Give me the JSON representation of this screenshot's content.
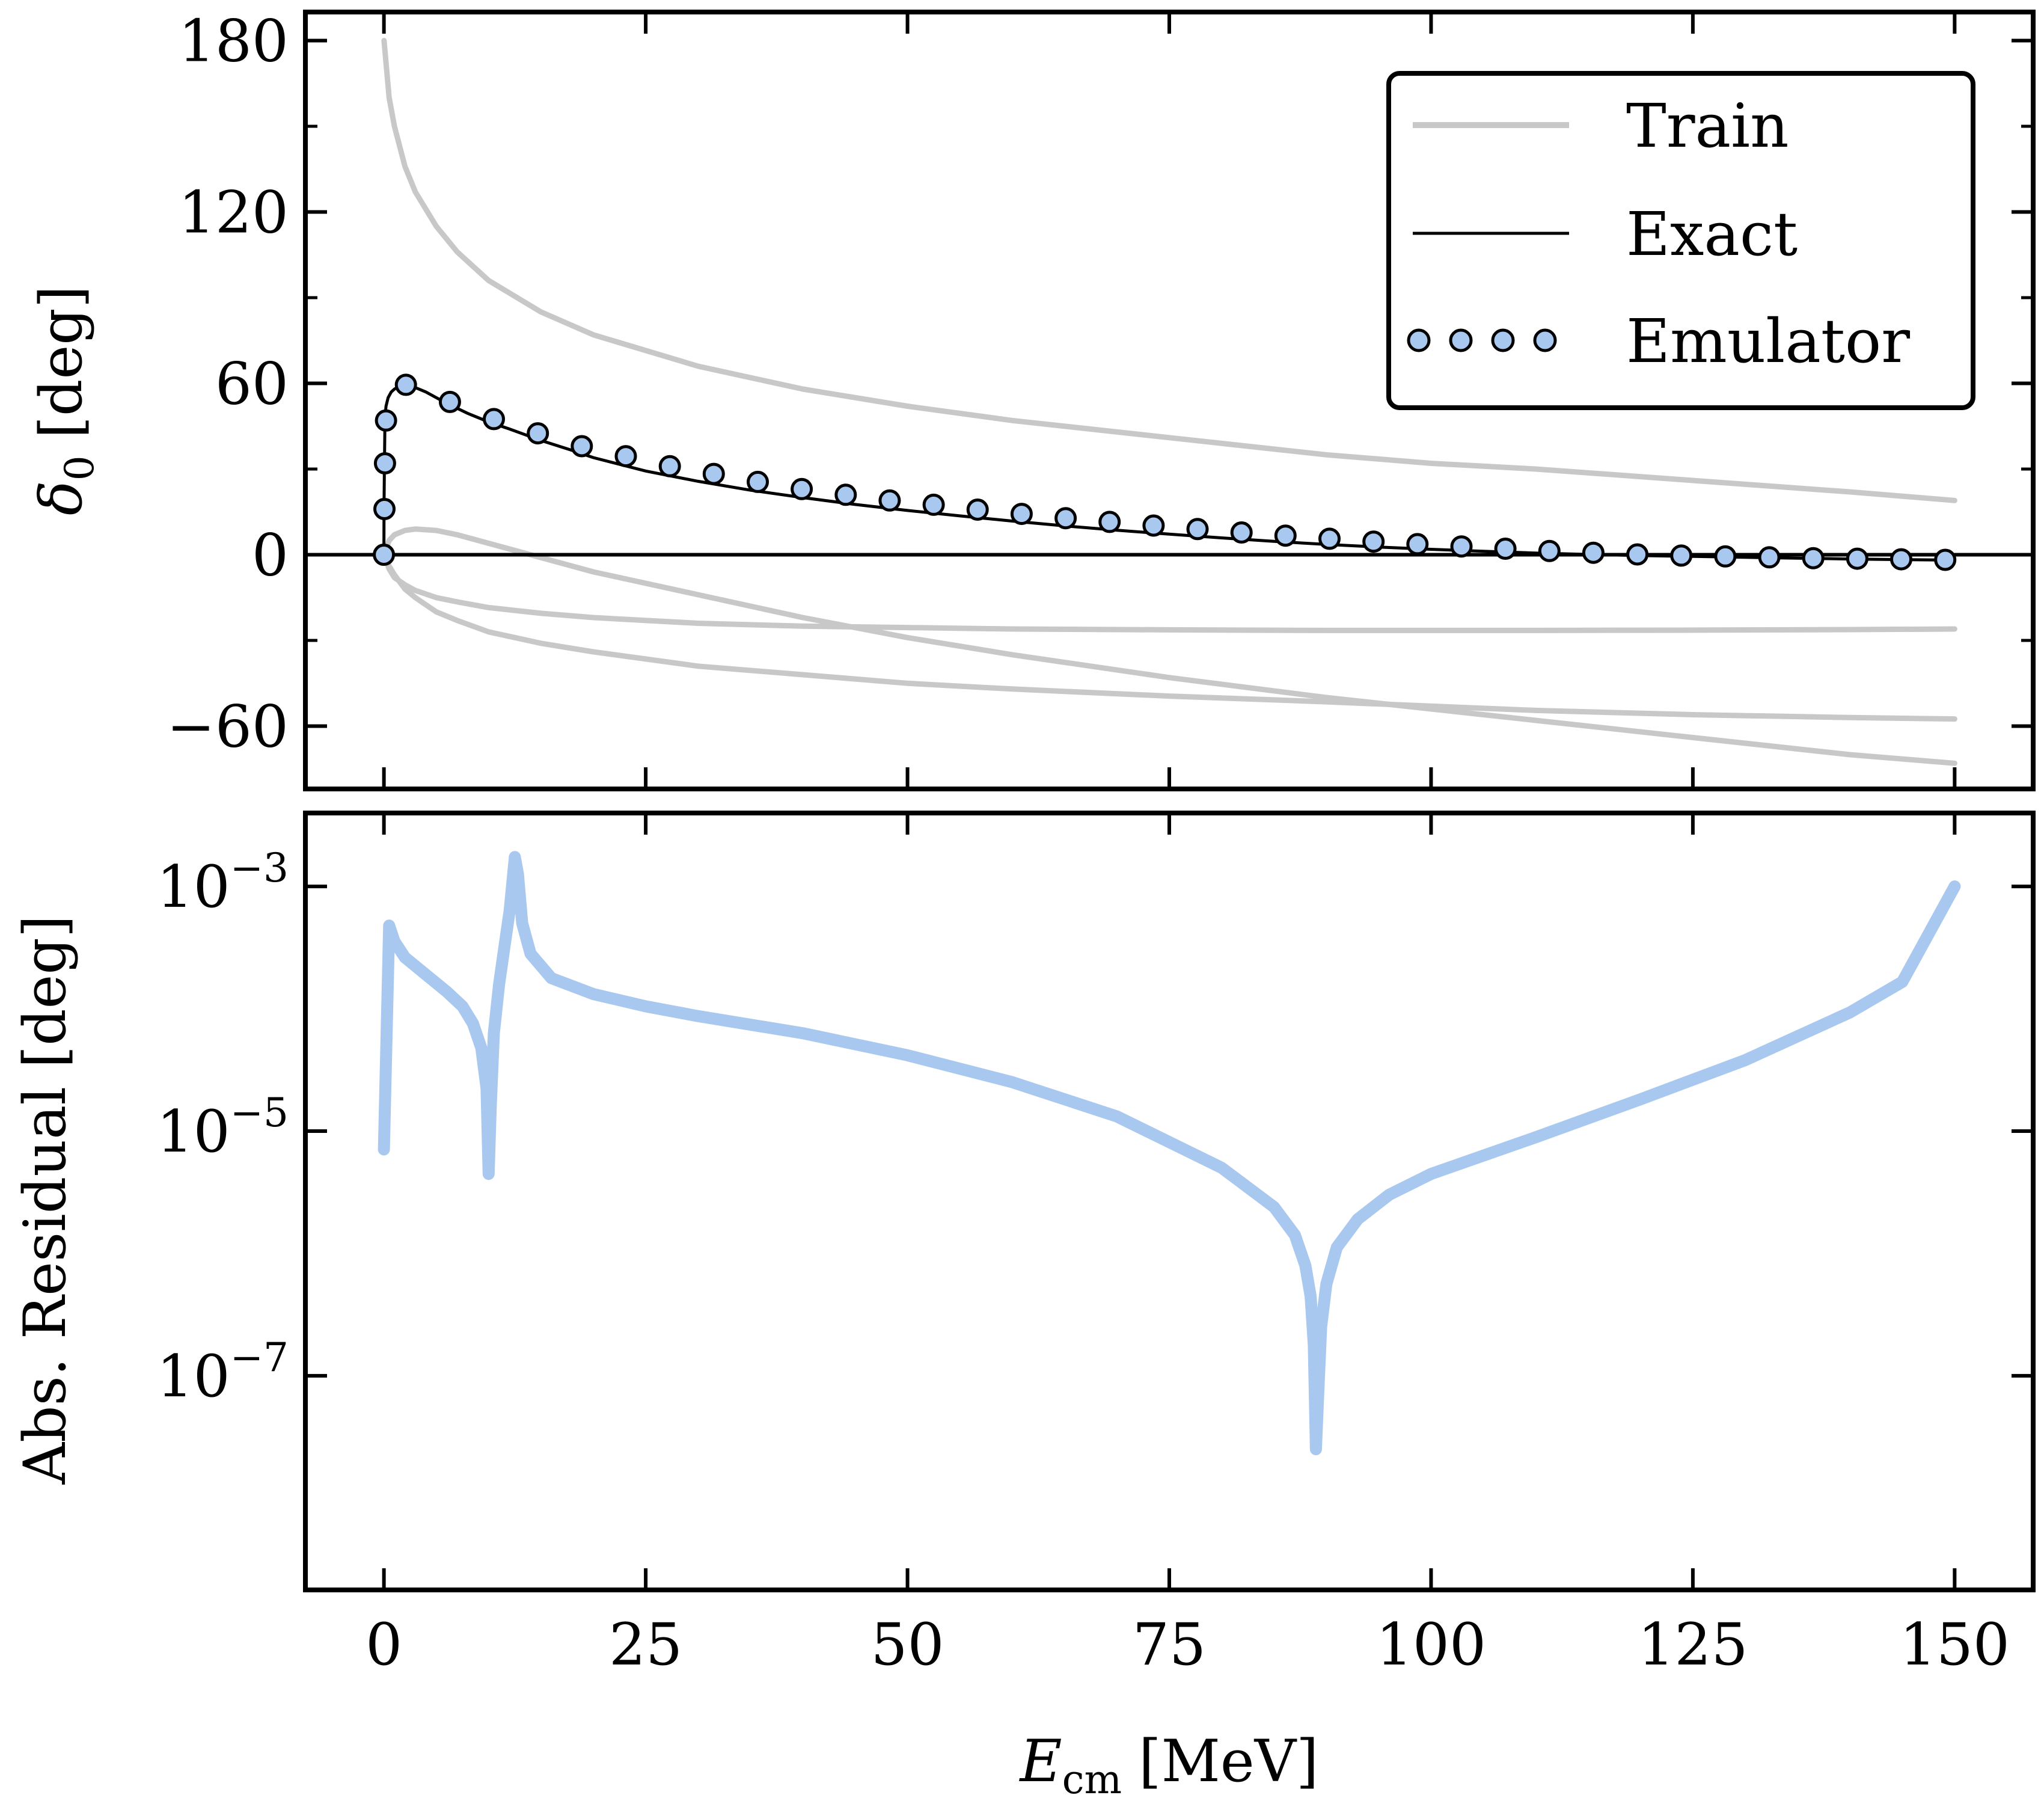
{
  "chart_data": [
    {
      "type": "line",
      "panel": "top",
      "ylabel": "δ0 [deg]",
      "ylabel_main": "δ",
      "ylabel_sub": "0",
      "ylabel_unit": "[deg]",
      "xlim": [
        -7.5,
        157.5
      ],
      "ylim": [
        -82,
        190
      ],
      "xticks": [
        0,
        25,
        50,
        75,
        100,
        125,
        150
      ],
      "yticks": [
        -60,
        0,
        60,
        120,
        180
      ],
      "ytick_labels": [
        "−60",
        "0",
        "60",
        "120",
        "180"
      ],
      "hline": 0,
      "legend": {
        "position": "top-right",
        "train_label": "Train",
        "exact_label": "Exact",
        "emulator_label": "Emulator"
      },
      "colors": {
        "train": "#c8c8c8",
        "exact": "#000000",
        "emulator": "#a8c8f0"
      },
      "train_series": [
        {
          "name": "Train 1",
          "x": [
            0.01,
            0.5,
            1,
            2,
            3,
            5,
            7,
            10,
            15,
            20,
            30,
            40,
            50,
            60,
            75,
            90,
            100,
            110,
            125,
            140,
            150
          ],
          "y": [
            180,
            160,
            150,
            136,
            127,
            115,
            106,
            96,
            85,
            77,
            66,
            58,
            52,
            47,
            41,
            35,
            32,
            30,
            26,
            22,
            19
          ]
        },
        {
          "name": "Train 2",
          "x": [
            0,
            0.5,
            1,
            2,
            3,
            5,
            7,
            10,
            15,
            20,
            30,
            40,
            50,
            60,
            75,
            90,
            100,
            110,
            125,
            140,
            150
          ],
          "y": [
            0,
            5,
            7,
            8.5,
            9,
            8.5,
            7,
            4,
            -1,
            -6,
            -14,
            -22,
            -29,
            -35,
            -43,
            -50,
            -54,
            -58,
            -64,
            -70,
            -73
          ]
        },
        {
          "name": "Train 3",
          "x": [
            0,
            0.5,
            1,
            2,
            3,
            5,
            7,
            10,
            15,
            20,
            30,
            40,
            50,
            60,
            75,
            90,
            100,
            110,
            125,
            140,
            150
          ],
          "y": [
            0,
            -5,
            -8,
            -10.5,
            -12.5,
            -15,
            -16.5,
            -18.5,
            -20.5,
            -22,
            -24,
            -25,
            -25.5,
            -26,
            -26.3,
            -26.5,
            -26.5,
            -26.5,
            -26.4,
            -26.2,
            -26
          ]
        },
        {
          "name": "Train 4",
          "x": [
            0,
            0.5,
            1,
            2,
            3,
            5,
            7,
            10,
            15,
            20,
            30,
            40,
            50,
            60,
            75,
            90,
            100,
            110,
            125,
            140,
            150
          ],
          "y": [
            0,
            -4,
            -7,
            -12,
            -15,
            -20,
            -23,
            -27,
            -31,
            -34,
            -39,
            -42,
            -45,
            -47,
            -49.5,
            -51.5,
            -53,
            -54.5,
            -56,
            -57,
            -57.5
          ]
        }
      ],
      "exact": {
        "x": [
          0,
          0.01,
          0.05,
          0.1,
          0.2,
          0.4,
          0.7,
          1.0,
          1.5,
          2.1,
          3,
          4,
          6,
          8,
          10,
          12,
          15,
          18,
          20,
          25,
          30,
          35,
          40,
          45,
          50,
          55,
          60,
          65,
          70,
          75,
          80,
          85,
          90,
          95,
          100,
          105,
          110,
          115,
          120,
          125,
          130,
          135,
          140,
          145,
          150
        ],
        "y": [
          0,
          17,
          32,
          48,
          52,
          55,
          57,
          58,
          59,
          59.5,
          58.5,
          57,
          53,
          49.5,
          46.5,
          44,
          40,
          36.5,
          34,
          29.3,
          25.7,
          22.6,
          20,
          17.6,
          15.5,
          13.6,
          11.8,
          10.1,
          8.6,
          7.2,
          5.9,
          4.7,
          3.6,
          2.7,
          1.9,
          1.2,
          0.6,
          0.1,
          -0.3,
          -0.6,
          -0.9,
          -1.2,
          -1.5,
          -1.7,
          -1.9
        ]
      },
      "emulator": {
        "x": [
          0,
          0.05,
          0.1,
          0.2,
          2.1,
          6.3,
          10.5,
          14.7,
          18.9,
          23.1,
          27.3,
          31.5,
          35.7,
          39.9,
          44.1,
          48.3,
          52.5,
          56.7,
          60.9,
          65.1,
          69.3,
          73.5,
          77.7,
          81.9,
          86.1,
          90.3,
          94.5,
          98.7,
          102.9,
          107.1,
          111.3,
          115.5,
          119.7,
          123.9,
          128.1,
          132.3,
          136.5,
          140.7,
          144.9,
          149.1
        ],
        "y": [
          0,
          16,
          32,
          47,
          59.5,
          53.5,
          47.5,
          42.5,
          38,
          34.5,
          31,
          28.3,
          25.5,
          23,
          21,
          19,
          17.5,
          15.8,
          14.3,
          12.8,
          11.5,
          10.2,
          9,
          7.8,
          6.7,
          5.6,
          4.6,
          3.7,
          2.9,
          2.1,
          1.3,
          0.7,
          0.1,
          -0.3,
          -0.6,
          -0.9,
          -1.2,
          -1.4,
          -1.6,
          -1.8
        ]
      }
    },
    {
      "type": "line",
      "panel": "bottom",
      "ylabel": "Abs. Residual [deg]",
      "xlabel": "Ecm [MeV]",
      "xlabel_main": "E",
      "xlabel_sub": "cm",
      "xlabel_unit": "[MeV]",
      "yscale": "log",
      "xlim": [
        -7.5,
        157.5
      ],
      "ylim_log10": [
        -8.75,
        -2.4
      ],
      "xticks": [
        0,
        25,
        50,
        75,
        100,
        125,
        150
      ],
      "xtick_labels": [
        "0",
        "25",
        "50",
        "75",
        "100",
        "125",
        "150"
      ],
      "yticks_log10": [
        -7,
        -5,
        -3
      ],
      "ytick_base": "10",
      "ytick_exponents": [
        "−7",
        "−5",
        "−3"
      ],
      "color": "#a8c8f0",
      "residual": {
        "x": [
          0,
          0.5,
          1,
          2,
          4,
          6,
          7.5,
          8.5,
          9.3,
          9.8,
          10.0,
          10.2,
          10.5,
          11,
          11.5,
          12,
          12.5,
          12.8,
          13.2,
          14,
          16,
          20,
          25,
          30,
          40,
          50,
          60,
          70,
          80,
          85,
          87,
          88,
          88.5,
          88.8,
          89.0,
          89.2,
          89.5,
          90,
          91,
          93,
          96,
          100,
          110,
          120,
          130,
          140,
          145,
          150
        ],
        "y_log10": [
          -5.15,
          -3.32,
          -3.45,
          -3.58,
          -3.72,
          -3.86,
          -3.98,
          -4.12,
          -4.32,
          -4.65,
          -5.35,
          -4.8,
          -4.2,
          -3.8,
          -3.5,
          -3.2,
          -2.76,
          -2.9,
          -3.3,
          -3.55,
          -3.75,
          -3.88,
          -3.98,
          -4.06,
          -4.2,
          -4.38,
          -4.6,
          -4.88,
          -5.3,
          -5.62,
          -5.85,
          -6.1,
          -6.35,
          -6.75,
          -7.6,
          -7.2,
          -6.6,
          -6.25,
          -5.95,
          -5.72,
          -5.52,
          -5.35,
          -5.05,
          -4.74,
          -4.42,
          -4.03,
          -3.78,
          -3.0
        ]
      }
    }
  ]
}
